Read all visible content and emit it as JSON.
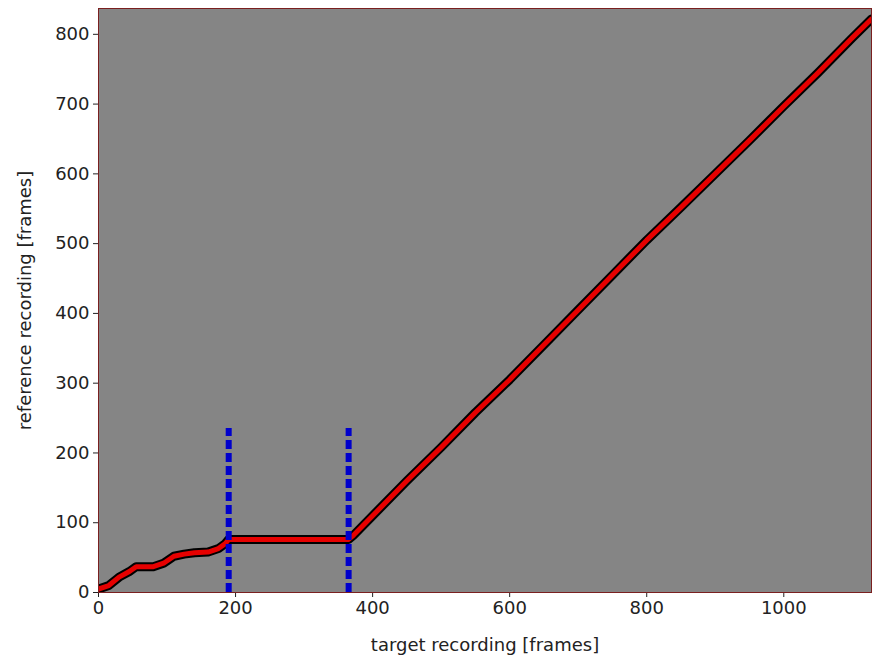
{
  "chart_data": {
    "type": "line",
    "xlabel": "target recording [frames]",
    "ylabel": "reference recording [frames]",
    "xlim": [
      0,
      1128
    ],
    "ylim": [
      0,
      837
    ],
    "xticks": [
      0,
      200,
      400,
      600,
      800,
      1000
    ],
    "yticks": [
      0,
      100,
      200,
      300,
      400,
      500,
      600,
      700,
      800
    ],
    "path": {
      "x": [
        0,
        15,
        30,
        45,
        55,
        80,
        95,
        110,
        125,
        140,
        160,
        175,
        185,
        190,
        365,
        372,
        450,
        500,
        550,
        600,
        650,
        700,
        750,
        800,
        850,
        900,
        950,
        1000,
        1050,
        1100,
        1128
      ],
      "y": [
        5,
        10,
        22,
        30,
        37,
        37,
        42,
        52,
        55,
        57,
        58,
        63,
        70,
        76,
        76,
        82,
        160,
        208,
        258,
        305,
        355,
        405,
        455,
        505,
        552,
        600,
        648,
        697,
        745,
        795,
        822
      ],
      "color": "#e60000"
    },
    "boundaries": {
      "x": [
        190,
        365
      ],
      "y": [
        0,
        235
      ],
      "color": "#0000cc",
      "line_style": "dashed"
    }
  }
}
